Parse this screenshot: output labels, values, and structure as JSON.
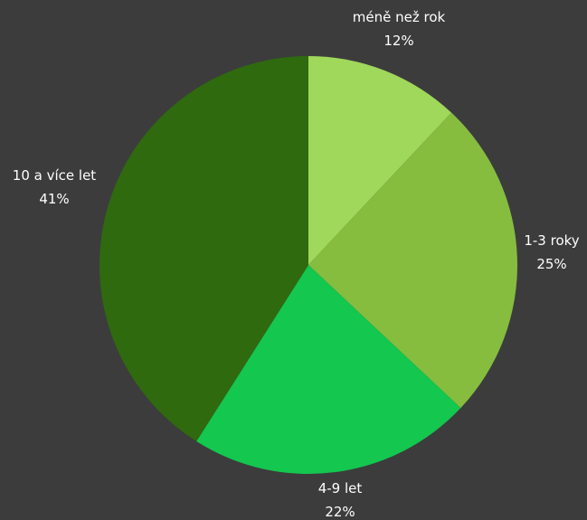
{
  "chart_data": {
    "type": "pie",
    "title": "",
    "start_angle_deg": 0,
    "direction": "clockwise",
    "slices": [
      {
        "label": "méně než rok",
        "percent_label": "12%",
        "value": 12,
        "color": "#9fd85a"
      },
      {
        "label": "1-3 roky",
        "percent_label": "25%",
        "value": 25,
        "color": "#86bd3f"
      },
      {
        "label": "4-9 let",
        "percent_label": "22%",
        "value": 22,
        "color": "#13c74f"
      },
      {
        "label": "10 a více let",
        "percent_label": "41%",
        "value": 41,
        "color": "#2f6a0e"
      }
    ]
  }
}
